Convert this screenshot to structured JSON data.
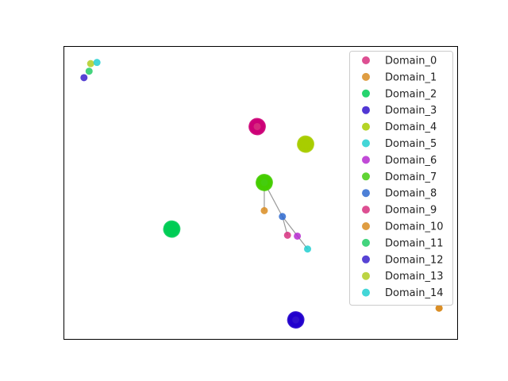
{
  "chart_data": {
    "type": "scatter",
    "title": "",
    "xlabel": "",
    "ylabel": "",
    "axis_ticks": "none",
    "grid": false,
    "legend_location": "upper right",
    "xlim": [
      0,
      100
    ],
    "ylim": [
      0,
      100
    ],
    "series": [
      {
        "name": "Domain_0",
        "color": "#d7307f",
        "points": [
          [
            49.2,
            72.5
          ]
        ]
      },
      {
        "name": "Domain_1",
        "color": "#d98c21",
        "points": [
          [
            51.0,
            43.8
          ],
          [
            95.4,
            10.5
          ]
        ]
      },
      {
        "name": "Domain_2",
        "color": "#00cc55",
        "points": [
          [
            27.5,
            37.5
          ]
        ]
      },
      {
        "name": "Domain_3",
        "color": "#3214cc",
        "points": [
          [
            59.0,
            6.5
          ]
        ]
      },
      {
        "name": "Domain_4",
        "color": "#a8cc00",
        "points": [
          [
            61.5,
            66.5
          ]
        ]
      },
      {
        "name": "Domain_5",
        "color": "#22cfd0",
        "points": [
          [
            62.0,
            30.7
          ]
        ]
      },
      {
        "name": "Domain_6",
        "color": "#b62ad0",
        "points": [
          [
            59.4,
            35.1
          ]
        ]
      },
      {
        "name": "Domain_7",
        "color": "#44cc11",
        "points": [
          [
            51.0,
            53.4
          ]
        ]
      },
      {
        "name": "Domain_8",
        "color": "#2e6ad0",
        "points": [
          [
            55.6,
            41.8
          ]
        ]
      },
      {
        "name": "Domain_9",
        "color": "#d7307f",
        "points": [
          [
            56.9,
            35.4
          ]
        ]
      },
      {
        "name": "Domain_10",
        "color": "#d98c21",
        "points": [
          [
            95.4,
            10.5
          ]
        ]
      },
      {
        "name": "Domain_11",
        "color": "#22cc66",
        "points": [
          [
            6.5,
            91.4
          ]
        ]
      },
      {
        "name": "Domain_12",
        "color": "#3a22cc",
        "points": [
          [
            5.2,
            89.2
          ]
        ]
      },
      {
        "name": "Domain_13",
        "color": "#b0cc22",
        "points": [
          [
            6.9,
            94.0
          ]
        ]
      },
      {
        "name": "Domain_14",
        "color": "#22cfd0",
        "points": [
          [
            8.5,
            94.4
          ]
        ]
      }
    ],
    "clusters": [
      {
        "color": "#cc0077",
        "center": [
          49.2,
          72.5
        ]
      },
      {
        "color": "#a8cc00",
        "center": [
          61.5,
          66.5
        ]
      },
      {
        "color": "#44cc00",
        "center": [
          51.0,
          53.4
        ]
      },
      {
        "color": "#00cc55",
        "center": [
          27.5,
          37.5
        ]
      },
      {
        "color": "#2200cc",
        "center": [
          59.0,
          6.5
        ]
      }
    ],
    "edges": [
      [
        [
          51.0,
          53.4
        ],
        [
          51.0,
          43.8
        ]
      ],
      [
        [
          51.0,
          53.4
        ],
        [
          55.6,
          41.8
        ]
      ],
      [
        [
          55.6,
          41.8
        ],
        [
          56.9,
          35.4
        ]
      ],
      [
        [
          55.6,
          41.8
        ],
        [
          62.0,
          30.7
        ]
      ]
    ]
  }
}
